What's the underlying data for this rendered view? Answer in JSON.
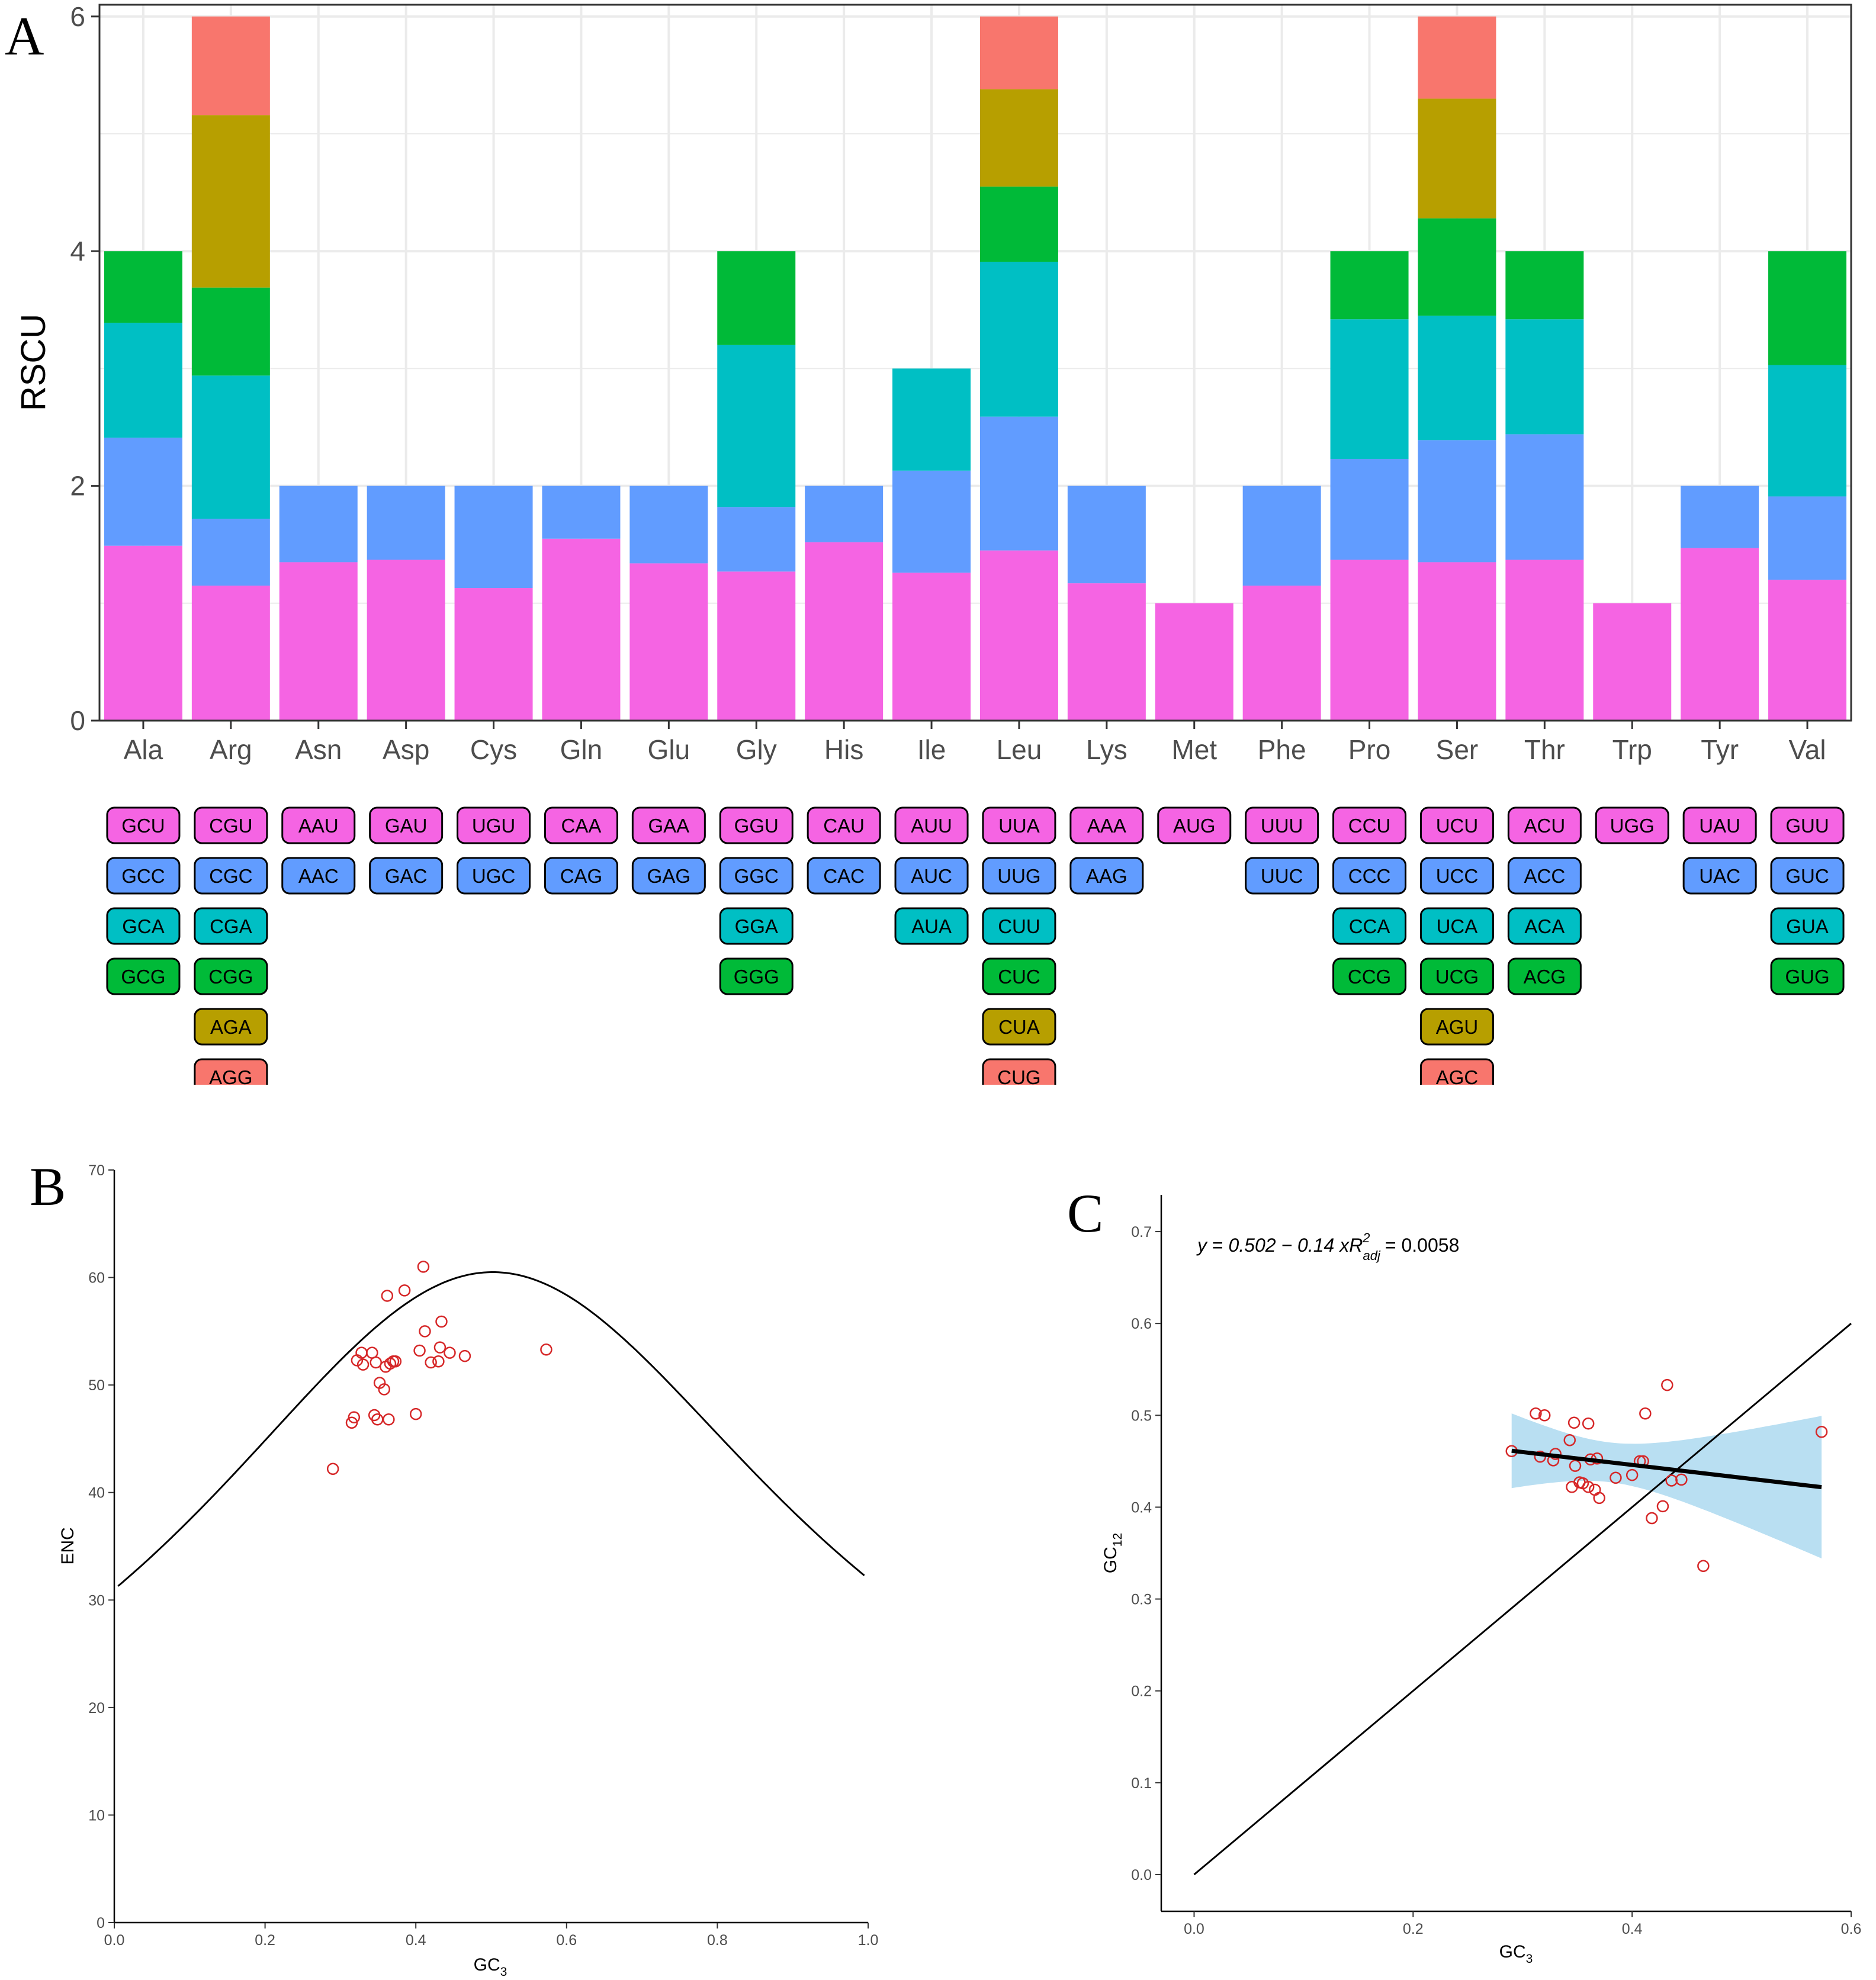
{
  "panels": {
    "a": {
      "letter": "A"
    },
    "b": {
      "letter": "B"
    },
    "c": {
      "letter": "C"
    }
  },
  "colors": {
    "codon1": "#F564E3",
    "codon2": "#619CFF",
    "codon3": "#00BFC4",
    "codon4": "#00BA38",
    "codon5": "#B79F00",
    "codon6": "#F8766D",
    "scatter": "#D62728",
    "ribbon": "#B9DFF2"
  },
  "chart_data": [
    {
      "panel": "A",
      "type": "bar",
      "stacked": true,
      "title": "",
      "xlabel": "",
      "ylabel": "RSCU",
      "ylim": [
        0,
        6.1
      ],
      "yticks": [
        0,
        2,
        4,
        6
      ],
      "grid": true,
      "categories": [
        "Ala",
        "Arg",
        "Asn",
        "Asp",
        "Cys",
        "Gln",
        "Glu",
        "Gly",
        "His",
        "Ile",
        "Leu",
        "Lys",
        "Met",
        "Phe",
        "Pro",
        "Ser",
        "Thr",
        "Trp",
        "Tyr",
        "Val"
      ],
      "stacks": [
        {
          "codons": [
            "GCU",
            "GCC",
            "GCA",
            "GCG"
          ],
          "values": [
            1.49,
            0.92,
            0.98,
            0.61
          ]
        },
        {
          "codons": [
            "CGU",
            "CGC",
            "CGA",
            "CGG",
            "AGA",
            "AGG"
          ],
          "values": [
            1.15,
            0.57,
            1.22,
            0.75,
            1.47,
            0.84
          ]
        },
        {
          "codons": [
            "AAU",
            "AAC"
          ],
          "values": [
            1.35,
            0.65
          ]
        },
        {
          "codons": [
            "GAU",
            "GAC"
          ],
          "values": [
            1.37,
            0.63
          ]
        },
        {
          "codons": [
            "UGU",
            "UGC"
          ],
          "values": [
            1.13,
            0.87
          ]
        },
        {
          "codons": [
            "CAA",
            "CAG"
          ],
          "values": [
            1.55,
            0.45
          ]
        },
        {
          "codons": [
            "GAA",
            "GAG"
          ],
          "values": [
            1.34,
            0.66
          ]
        },
        {
          "codons": [
            "GGU",
            "GGC",
            "GGA",
            "GGG"
          ],
          "values": [
            1.27,
            0.55,
            1.38,
            0.8
          ]
        },
        {
          "codons": [
            "CAU",
            "CAC"
          ],
          "values": [
            1.52,
            0.48
          ]
        },
        {
          "codons": [
            "AUU",
            "AUC",
            "AUA"
          ],
          "values": [
            1.26,
            0.87,
            0.87
          ]
        },
        {
          "codons": [
            "UUA",
            "UUG",
            "CUU",
            "CUC",
            "CUA",
            "CUG"
          ],
          "values": [
            1.45,
            1.14,
            1.32,
            0.64,
            0.83,
            0.62
          ]
        },
        {
          "codons": [
            "AAA",
            "AAG"
          ],
          "values": [
            1.17,
            0.83
          ]
        },
        {
          "codons": [
            "AUG"
          ],
          "values": [
            1.0
          ]
        },
        {
          "codons": [
            "UUU",
            "UUC"
          ],
          "values": [
            1.15,
            0.85
          ]
        },
        {
          "codons": [
            "CCU",
            "CCC",
            "CCA",
            "CCG"
          ],
          "values": [
            1.37,
            0.86,
            1.19,
            0.58
          ]
        },
        {
          "codons": [
            "UCU",
            "UCC",
            "UCA",
            "UCG",
            "AGU",
            "AGC"
          ],
          "values": [
            1.35,
            1.04,
            1.06,
            0.83,
            1.02,
            0.7
          ]
        },
        {
          "codons": [
            "ACU",
            "ACC",
            "ACA",
            "ACG"
          ],
          "values": [
            1.37,
            1.07,
            0.98,
            0.58
          ]
        },
        {
          "codons": [
            "UGG"
          ],
          "values": [
            1.0
          ]
        },
        {
          "codons": [
            "UAU",
            "UAC"
          ],
          "values": [
            1.47,
            0.53
          ]
        },
        {
          "codons": [
            "GUU",
            "GUC",
            "GUA",
            "GUG"
          ],
          "values": [
            1.2,
            0.71,
            1.12,
            0.97
          ]
        }
      ]
    },
    {
      "panel": "B",
      "type": "scatter",
      "title": "",
      "xlabel": "GC",
      "xlabel_sub": "3",
      "ylabel": "ENC",
      "xlim": [
        0,
        1
      ],
      "ylim": [
        0,
        70
      ],
      "xticks": [
        "0.0",
        "0.2",
        "0.4",
        "0.6",
        "0.8",
        "1.0"
      ],
      "yticks": [
        "0",
        "10",
        "20",
        "30",
        "40",
        "50",
        "60",
        "70"
      ],
      "grid": false,
      "curve": "expected ENC = 2 + s + 29/(s^2 + (1-s)^2), s = GC3",
      "points": [
        [
          0.29,
          42.2
        ],
        [
          0.315,
          46.5
        ],
        [
          0.318,
          47.0
        ],
        [
          0.322,
          52.3
        ],
        [
          0.328,
          53.0
        ],
        [
          0.33,
          51.9
        ],
        [
          0.342,
          53.0
        ],
        [
          0.345,
          47.2
        ],
        [
          0.347,
          52.1
        ],
        [
          0.349,
          46.8
        ],
        [
          0.352,
          50.2
        ],
        [
          0.358,
          49.6
        ],
        [
          0.36,
          51.7
        ],
        [
          0.362,
          58.3
        ],
        [
          0.364,
          46.8
        ],
        [
          0.366,
          52.0
        ],
        [
          0.37,
          52.2
        ],
        [
          0.373,
          52.2
        ],
        [
          0.385,
          58.8
        ],
        [
          0.4,
          47.3
        ],
        [
          0.405,
          53.2
        ],
        [
          0.41,
          61.0
        ],
        [
          0.412,
          55.0
        ],
        [
          0.42,
          52.1
        ],
        [
          0.43,
          52.2
        ],
        [
          0.432,
          53.5
        ],
        [
          0.434,
          55.9
        ],
        [
          0.445,
          53.0
        ],
        [
          0.465,
          52.7
        ],
        [
          0.573,
          53.3
        ]
      ]
    },
    {
      "panel": "C",
      "type": "scatter",
      "title": "",
      "xlabel": "GC",
      "xlabel_sub": "3",
      "ylabel": "GC",
      "ylabel_sub": "12",
      "xlim": [
        -0.03,
        0.6
      ],
      "ylim": [
        -0.04,
        0.74
      ],
      "xticks": [
        "0.0",
        "0.2",
        "0.4",
        "0.6"
      ],
      "yticks": [
        "0.0",
        "0.1",
        "0.2",
        "0.3",
        "0.4",
        "0.5",
        "0.6",
        "0.7"
      ],
      "grid": false,
      "equation": {
        "lhs": "y",
        "rhs": "0.502 − 0.14 x",
        "r2_label": "R",
        "r2_sup": "2",
        "r2_sub": "adj",
        "r2_value": "= 0.0058"
      },
      "regression": {
        "intercept": 0.502,
        "slope": -0.14,
        "x_range": [
          0.29,
          0.573
        ]
      },
      "reference_line": {
        "from": [
          0.0,
          0.0
        ],
        "to": [
          0.6,
          0.6
        ]
      },
      "points": [
        [
          0.29,
          0.461
        ],
        [
          0.312,
          0.502
        ],
        [
          0.316,
          0.455
        ],
        [
          0.32,
          0.5
        ],
        [
          0.328,
          0.451
        ],
        [
          0.33,
          0.458
        ],
        [
          0.343,
          0.473
        ],
        [
          0.345,
          0.422
        ],
        [
          0.347,
          0.492
        ],
        [
          0.348,
          0.445
        ],
        [
          0.352,
          0.427
        ],
        [
          0.355,
          0.426
        ],
        [
          0.36,
          0.422
        ],
        [
          0.36,
          0.491
        ],
        [
          0.362,
          0.452
        ],
        [
          0.366,
          0.419
        ],
        [
          0.368,
          0.453
        ],
        [
          0.37,
          0.41
        ],
        [
          0.385,
          0.432
        ],
        [
          0.4,
          0.435
        ],
        [
          0.407,
          0.45
        ],
        [
          0.41,
          0.45
        ],
        [
          0.412,
          0.502
        ],
        [
          0.418,
          0.388
        ],
        [
          0.428,
          0.401
        ],
        [
          0.432,
          0.533
        ],
        [
          0.436,
          0.429
        ],
        [
          0.445,
          0.43
        ],
        [
          0.465,
          0.336
        ],
        [
          0.573,
          0.482
        ]
      ]
    }
  ]
}
